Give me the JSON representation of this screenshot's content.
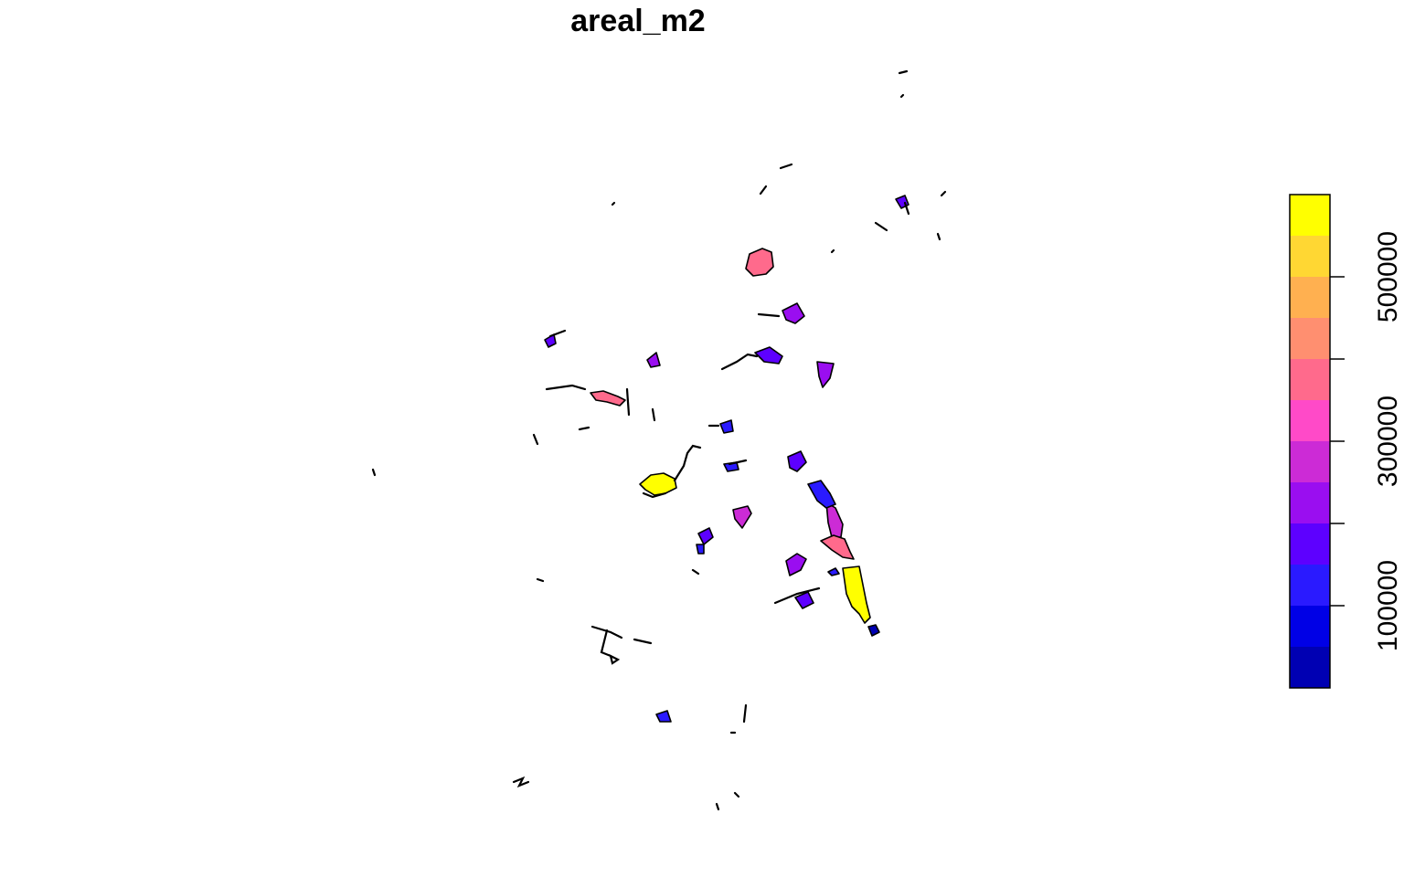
{
  "title": "areal_m2",
  "legend": {
    "ticks": [
      {
        "value": 100000,
        "label": "100000"
      },
      {
        "value": 300000,
        "label": "300000"
      },
      {
        "value": 500000,
        "label": "500000"
      }
    ],
    "range": [
      0,
      600000
    ],
    "bins": [
      {
        "from": 0,
        "to": 50000,
        "color": "#0000B3"
      },
      {
        "from": 50000,
        "to": 100000,
        "color": "#0000E6"
      },
      {
        "from": 100000,
        "to": 150000,
        "color": "#2A1AFF"
      },
      {
        "from": 150000,
        "to": 200000,
        "color": "#5D00FF"
      },
      {
        "from": 200000,
        "to": 250000,
        "color": "#9A0EF0"
      },
      {
        "from": 250000,
        "to": 300000,
        "color": "#CC2BD6"
      },
      {
        "from": 300000,
        "to": 350000,
        "color": "#FF4AC8"
      },
      {
        "from": 350000,
        "to": 400000,
        "color": "#FF6A8C"
      },
      {
        "from": 400000,
        "to": 450000,
        "color": "#FF8F70"
      },
      {
        "from": 450000,
        "to": 500000,
        "color": "#FFB050"
      },
      {
        "from": 500000,
        "to": 550000,
        "color": "#FFD733"
      },
      {
        "from": 550000,
        "to": 600000,
        "color": "#FFFF00"
      }
    ]
  }
}
